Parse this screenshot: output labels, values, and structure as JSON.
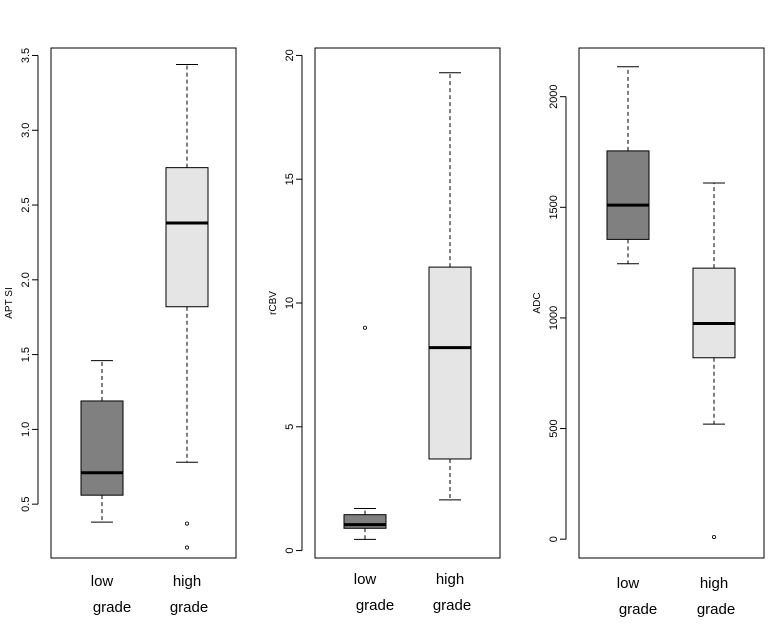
{
  "chart_data": [
    {
      "type": "box",
      "ylabel": "APT SI",
      "ylim": [
        0.14,
        3.55
      ],
      "yticks": [
        0.5,
        1.0,
        1.5,
        2.0,
        2.5,
        3.0,
        3.5
      ],
      "ytick_labels": [
        "0.5",
        "1.0",
        "1.5",
        "2.0",
        "2.5",
        "3.0",
        "3.5"
      ],
      "categories": [
        {
          "line1": "low",
          "line2": "grade"
        },
        {
          "line1": "high",
          "line2": "grade"
        }
      ],
      "boxes": [
        {
          "min": 0.38,
          "q1": 0.56,
          "median": 0.71,
          "q3": 1.19,
          "max": 1.46,
          "outliers": [],
          "fill": "#808080"
        },
        {
          "min": 0.78,
          "q1": 1.82,
          "median": 2.38,
          "q3": 2.75,
          "max": 3.44,
          "outliers": [
            0.37,
            0.21
          ],
          "fill": "#e5e5e5"
        }
      ]
    },
    {
      "type": "box",
      "ylabel": "rCBV",
      "ylim": [
        -0.3,
        20.3
      ],
      "yticks": [
        0,
        5,
        10,
        15,
        20
      ],
      "ytick_labels": [
        "0",
        "5",
        "10",
        "15",
        "20"
      ],
      "categories": [
        {
          "line1": "low",
          "line2": "grade"
        },
        {
          "line1": "high",
          "line2": "grade"
        }
      ],
      "boxes": [
        {
          "min": 0.45,
          "q1": 0.9,
          "median": 1.05,
          "q3": 1.45,
          "max": 1.7,
          "outliers": [
            9.0
          ],
          "fill": "#808080"
        },
        {
          "min": 2.05,
          "q1": 3.7,
          "median": 8.2,
          "q3": 11.45,
          "max": 19.3,
          "outliers": [],
          "fill": "#e5e5e5"
        }
      ]
    },
    {
      "type": "box",
      "ylabel": "ADC",
      "ylim": [
        -85,
        2220
      ],
      "yticks": [
        0,
        500,
        1000,
        1500,
        2000
      ],
      "ytick_labels": [
        "0",
        "500",
        "1000",
        "1500",
        "2000"
      ],
      "categories": [
        {
          "line1": "low",
          "line2": "grade"
        },
        {
          "line1": "high",
          "line2": "grade"
        }
      ],
      "boxes": [
        {
          "min": 1245,
          "q1": 1355,
          "median": 1510,
          "q3": 1755,
          "max": 2135,
          "outliers": [],
          "fill": "#808080"
        },
        {
          "min": 520,
          "q1": 820,
          "median": 975,
          "q3": 1225,
          "max": 1610,
          "outliers": [
            10
          ],
          "fill": "#e5e5e5"
        }
      ]
    }
  ]
}
